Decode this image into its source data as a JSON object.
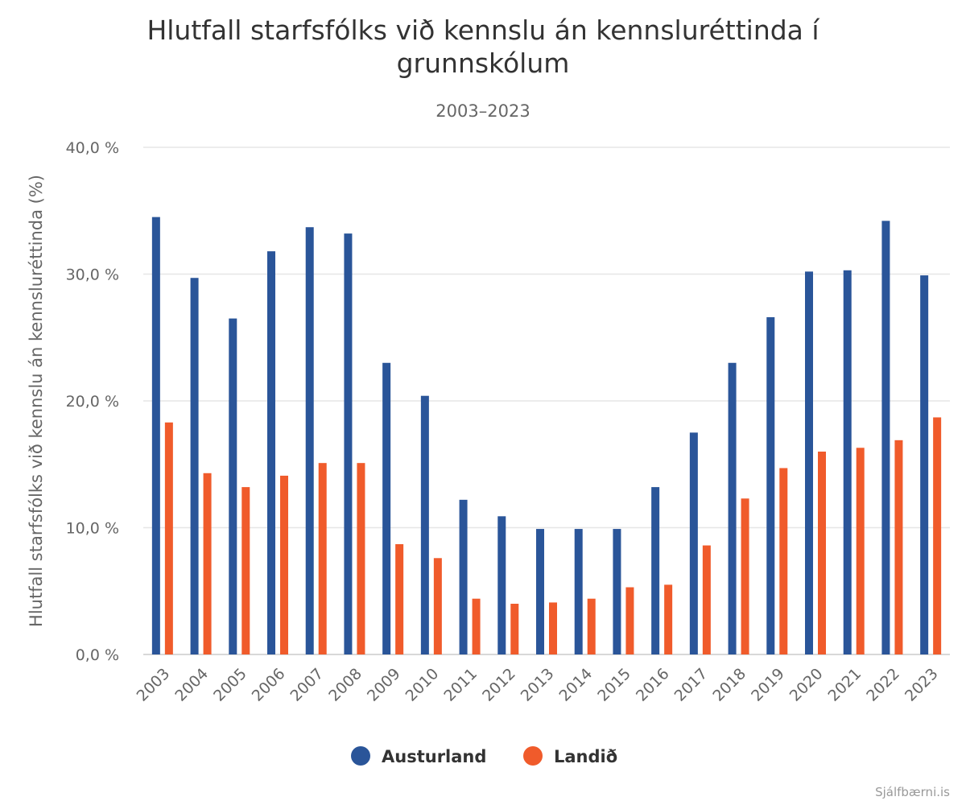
{
  "chart_data": {
    "type": "bar",
    "title": "Hlutfall starfsfólks við kennslu án kennsluréttinda í grunnskólum",
    "title_lines": [
      "Hlutfall starfsfólks við kennslu án kennsluréttinda í",
      "grunnskólum"
    ],
    "subtitle": "2003–2023",
    "xlabel": "",
    "ylabel": "Hlutfall starfsfólks við kennslu án kennsluréttinda (%)",
    "ylim": [
      0,
      40
    ],
    "yticks": [
      0,
      10,
      20,
      30,
      40
    ],
    "ytick_labels": [
      "0,0 %",
      "10,0 %",
      "20,0 %",
      "30,0 %",
      "40,0 %"
    ],
    "grid": true,
    "legend_position": "bottom-center",
    "categories": [
      "2003",
      "2004",
      "2005",
      "2006",
      "2007",
      "2008",
      "2009",
      "2010",
      "2011",
      "2012",
      "2013",
      "2014",
      "2015",
      "2016",
      "2017",
      "2018",
      "2019",
      "2020",
      "2021",
      "2022",
      "2023"
    ],
    "series": [
      {
        "name": "Austurland",
        "color": "#2a5599",
        "values": [
          34.5,
          29.7,
          26.5,
          31.8,
          33.7,
          33.2,
          23.0,
          20.4,
          12.2,
          10.9,
          9.9,
          9.9,
          9.9,
          13.2,
          17.5,
          23.0,
          26.6,
          30.2,
          30.3,
          34.2,
          29.9
        ]
      },
      {
        "name": "Landið",
        "color": "#f05b2b",
        "values": [
          18.3,
          14.3,
          13.2,
          14.1,
          15.1,
          15.1,
          8.7,
          7.6,
          4.4,
          4.0,
          4.1,
          4.4,
          5.3,
          5.5,
          8.6,
          12.3,
          14.7,
          16.0,
          16.3,
          16.9,
          18.7
        ]
      }
    ],
    "credit": "Sjálfbærni.is"
  }
}
